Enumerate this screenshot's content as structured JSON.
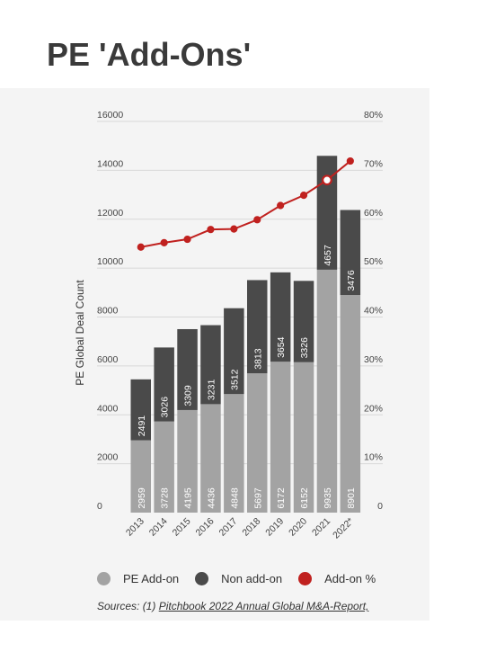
{
  "title": "PE 'Add-Ons'",
  "colors": {
    "pe_addon": "#a3a3a3",
    "non_addon": "#4a4a4a",
    "addon_pct": "#c0211f",
    "background": "#f4f4f4",
    "grid": "#d8d8d8"
  },
  "legend": [
    {
      "label": "PE Add-on",
      "color": "#a3a3a3"
    },
    {
      "label": "Non add-on",
      "color": "#4a4a4a"
    },
    {
      "label": "Add-on %",
      "color": "#c0211f"
    }
  ],
  "sources": {
    "prefix": "Sources: (1) ",
    "link": "Pitchbook 2022 Annual Global M&A-Report,"
  },
  "chart_data": {
    "type": "bar",
    "stacked": true,
    "categories": [
      "2013",
      "2014",
      "2015",
      "2016",
      "2017",
      "2018",
      "2019",
      "2020",
      "2021",
      "2022*"
    ],
    "series": [
      {
        "name": "PE Add-on",
        "values": [
          2959,
          3728,
          4195,
          4436,
          4848,
          5697,
          6172,
          6152,
          9935,
          8901
        ]
      },
      {
        "name": "Non add-on",
        "values": [
          2491,
          3026,
          3309,
          3231,
          3512,
          3813,
          3654,
          3326,
          4657,
          3476
        ]
      },
      {
        "name": "Add-on %",
        "axis": "right",
        "type": "line",
        "values": [
          54.3,
          55.2,
          55.9,
          57.9,
          58.0,
          59.9,
          62.8,
          64.9,
          68.0,
          71.9
        ]
      }
    ],
    "ylabel": "PE Global Deal Count",
    "ylim": [
      0,
      16000
    ],
    "yticks": [
      0,
      2000,
      4000,
      6000,
      8000,
      10000,
      12000,
      14000,
      16000
    ],
    "y2lim": [
      0,
      80
    ],
    "y2ticks": [
      "0",
      "10%",
      "20%",
      "30%",
      "40%",
      "50%",
      "60%",
      "70%",
      "80%"
    ],
    "grid": true
  }
}
